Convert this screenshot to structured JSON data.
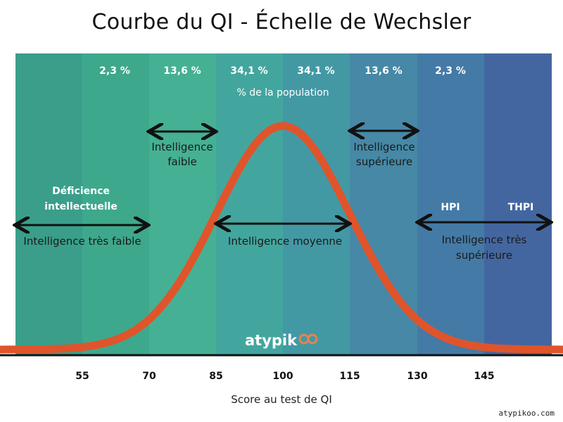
{
  "title": "Courbe du QI - Échelle de Wechsler",
  "percentages": [
    "2,3 %",
    "13,6 %",
    "34,1 %",
    "34,1 %",
    "13,6 %",
    "2,3 %"
  ],
  "population_label": "% de la population",
  "bands": [
    {
      "color": "#3a9e8a"
    },
    {
      "color": "#3ea88c"
    },
    {
      "color": "#45b094"
    },
    {
      "color": "#43a69e"
    },
    {
      "color": "#4299a4"
    },
    {
      "color": "#4688a6"
    },
    {
      "color": "#447aa6"
    },
    {
      "color": "#4466a0"
    }
  ],
  "categories": {
    "deficience_line1": "Déficience",
    "deficience_line2": "intellectuelle",
    "tres_faible": "Intelligence très faible",
    "faible_line1": "Intelligence",
    "faible_line2": "faible",
    "moyenne": "Intelligence moyenne",
    "superieure_line1": "Intelligence",
    "superieure_line2": "supérieure",
    "hpi": "HPI",
    "thpi": "THPI",
    "tres_superieure_line1": "Intelligence très",
    "tres_superieure_line2": "supérieure"
  },
  "logo": "atypik",
  "ticks": [
    "55",
    "70",
    "85",
    "100",
    "115",
    "130",
    "145"
  ],
  "x_label": "Score au test de QI",
  "footer": "atypikoo.com",
  "colors": {
    "curve": "#e0542b",
    "axis": "#111111",
    "arrow": "#111111",
    "text_light": "#ffffff"
  },
  "chart_data": {
    "type": "area",
    "distribution": "normal",
    "mean": 100,
    "sd": 15,
    "x_ticks": [
      55,
      70,
      85,
      100,
      115,
      130,
      145
    ],
    "band_percentages": [
      2.3,
      13.6,
      34.1,
      34.1,
      13.6,
      2.3
    ]
  }
}
